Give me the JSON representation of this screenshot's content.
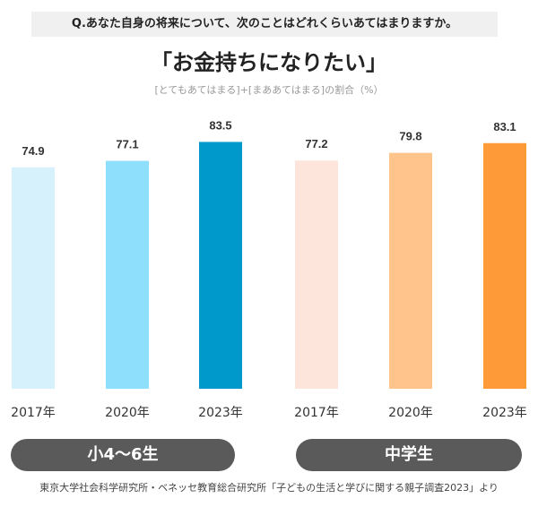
{
  "question": "Q.あなた自身の将来について、次のことはどれくらいあてはまりますか。",
  "chart_data": {
    "type": "bar",
    "title": "「お金持ちになりたい」",
    "subtitle": "[とてもあてはまる]+[まああてはまる]の割合（%）",
    "xlabel": "",
    "ylabel": "",
    "ylim": [
      0,
      100
    ],
    "grid": false,
    "groups": [
      {
        "name": "小4～6生",
        "categories": [
          "2017年",
          "2020年",
          "2023年"
        ],
        "values": [
          74.9,
          77.1,
          83.5
        ],
        "colors": [
          "#d6f1fc",
          "#8ddffb",
          "#0099cc"
        ]
      },
      {
        "name": "中学生",
        "categories": [
          "2017年",
          "2020年",
          "2023年"
        ],
        "values": [
          77.2,
          79.8,
          83.1
        ],
        "colors": [
          "#fde5dc",
          "#fec48c",
          "#fe9a37"
        ]
      }
    ]
  },
  "source": "東京大学社会科学研究所・ベネッセ教育総合研究所「子どもの生活と学びに関する親子調査2023」より"
}
